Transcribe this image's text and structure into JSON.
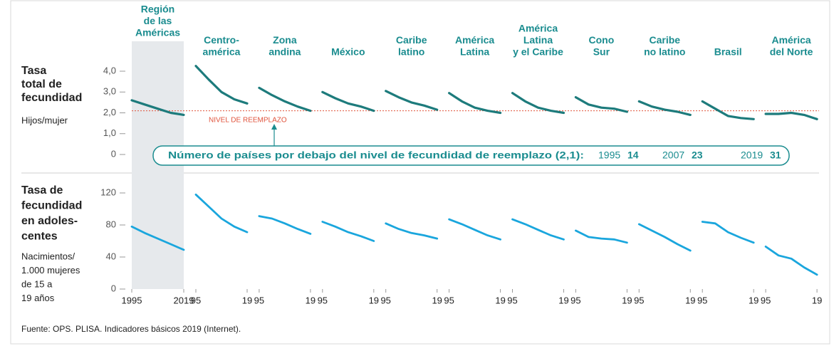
{
  "chart_data": {
    "type": "line",
    "x": [
      1995,
      2001,
      2007,
      2013,
      2019
    ],
    "xlim": [
      1995,
      2019
    ],
    "xticks_full": [
      1995,
      2019
    ],
    "xticks_short": [
      {
        "value": 1995,
        "label": "95"
      },
      {
        "value": 2019,
        "label": "19"
      }
    ],
    "tfr": {
      "label": [
        "Tasa",
        "total de",
        "fecundidad"
      ],
      "unit": [
        "Hijos/mujer"
      ],
      "ylim": [
        0,
        4.3
      ],
      "yticks": [
        0,
        {
          "value": 1,
          "label": "1,0"
        },
        {
          "value": 2,
          "label": "2,0"
        },
        {
          "value": 3,
          "label": "3,0"
        },
        {
          "value": 4,
          "label": "4,0"
        }
      ],
      "color": "#1d7b7c",
      "replacement": {
        "value": 2.1,
        "label": "NIVEL DE REEMPLAZO",
        "color": "#e0533c"
      }
    },
    "adolescent": {
      "label": [
        "Tasa de",
        "fecundidad",
        "en adoles-",
        "centes"
      ],
      "unit": [
        "Nacimientos/",
        "1.000 mujeres",
        "de 15 a",
        "19 años"
      ],
      "ylim": [
        0,
        125
      ],
      "yticks": [
        0,
        40,
        80,
        120
      ],
      "color": "#1aa6dd"
    },
    "panels": [
      {
        "name": [
          "Región",
          "de las",
          "Américas"
        ],
        "tfr": [
          2.6,
          2.4,
          2.2,
          2.0,
          1.9
        ],
        "adolescent": [
          78,
          70,
          63,
          56,
          49
        ]
      },
      {
        "name": [
          "Centro-",
          "américa"
        ],
        "tfr": [
          4.25,
          3.6,
          3.0,
          2.65,
          2.45
        ],
        "adolescent": [
          118,
          103,
          88,
          78,
          71
        ]
      },
      {
        "name": [
          "Zona",
          "andina"
        ],
        "tfr": [
          3.2,
          2.85,
          2.55,
          2.3,
          2.1
        ],
        "adolescent": [
          91,
          88,
          82,
          75,
          69
        ]
      },
      {
        "name": [
          "México"
        ],
        "tfr": [
          3.0,
          2.7,
          2.45,
          2.3,
          2.1
        ],
        "adolescent": [
          84,
          78,
          71,
          66,
          60
        ]
      },
      {
        "name": [
          "Caribe",
          "latino"
        ],
        "tfr": [
          3.05,
          2.75,
          2.5,
          2.35,
          2.15
        ],
        "adolescent": [
          82,
          75,
          70,
          67,
          63
        ]
      },
      {
        "name": [
          "América",
          "Latina"
        ],
        "tfr": [
          2.95,
          2.55,
          2.25,
          2.1,
          2.0
        ],
        "adolescent": [
          87,
          81,
          74,
          67,
          62
        ]
      },
      {
        "name": [
          "América",
          "Latina",
          "y el Caribe"
        ],
        "tfr": [
          2.95,
          2.55,
          2.25,
          2.1,
          2.0
        ],
        "adolescent": [
          87,
          81,
          74,
          67,
          62
        ]
      },
      {
        "name": [
          "Cono",
          "Sur"
        ],
        "tfr": [
          2.75,
          2.4,
          2.25,
          2.2,
          2.05
        ],
        "adolescent": [
          73,
          65,
          63,
          62,
          58
        ]
      },
      {
        "name": [
          "Caribe",
          "no latino"
        ],
        "tfr": [
          2.55,
          2.3,
          2.15,
          2.05,
          1.9
        ],
        "adolescent": [
          81,
          73,
          65,
          56,
          48
        ]
      },
      {
        "name": [
          "Brasil"
        ],
        "tfr": [
          2.55,
          2.2,
          1.85,
          1.75,
          1.7
        ],
        "adolescent": [
          84,
          82,
          71,
          64,
          58
        ]
      },
      {
        "name": [
          "América",
          "del Norte"
        ],
        "tfr": [
          1.95,
          1.95,
          2.0,
          1.9,
          1.7
        ],
        "adolescent": [
          53,
          42,
          38,
          27,
          18
        ]
      }
    ],
    "annotation": {
      "text": "Número de países por debajo del nivel de fecundidad de reemplazo (2,1):",
      "counts": [
        {
          "year": 1995,
          "value": 14
        },
        {
          "year": 2007,
          "value": 23
        },
        {
          "year": 2019,
          "value": 31
        }
      ]
    },
    "source": "Fuente: OPS. PLISA. Indicadores básicos 2019 (Internet)."
  }
}
